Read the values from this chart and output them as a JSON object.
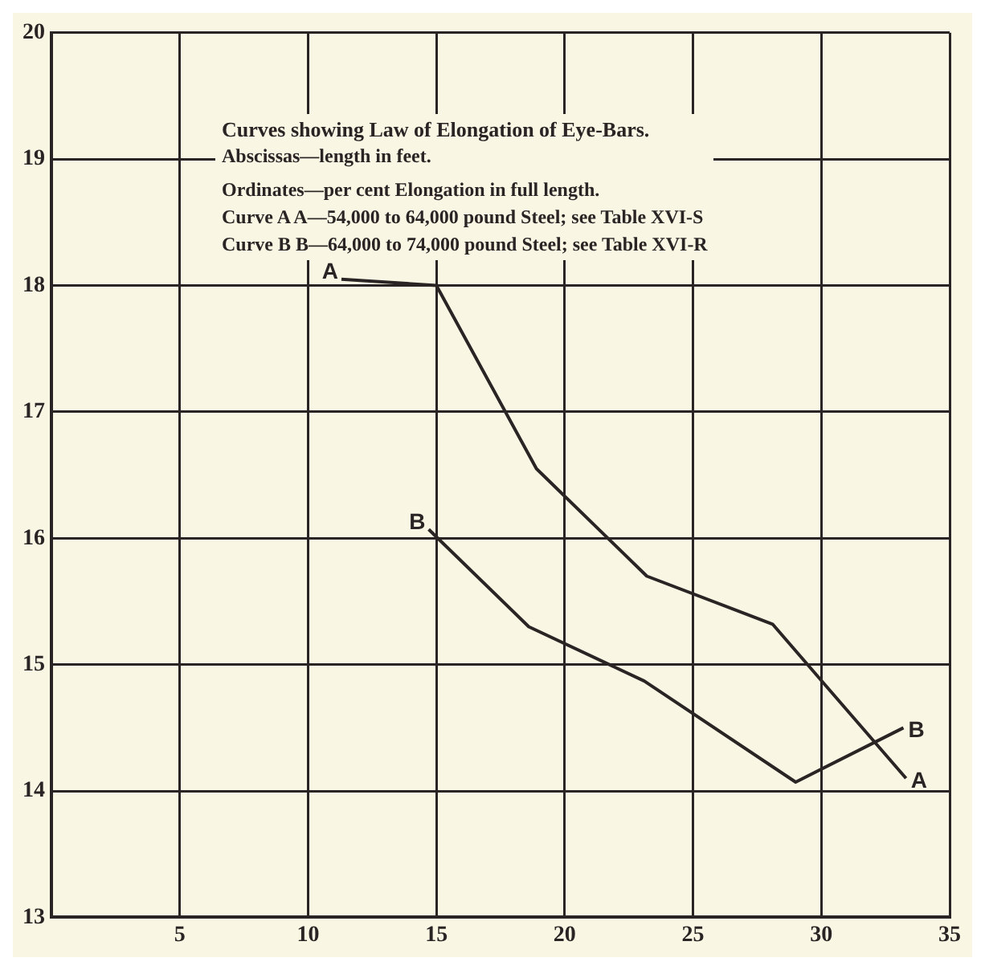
{
  "chart_data": {
    "type": "line",
    "title": "Curves showing Law of Elongation of Eye-Bars.",
    "annotations": [
      "Abscissas—length in feet.",
      "Ordinates—per cent Elongation in full length.",
      "Curve A A—54,000 to 64,000 pound Steel; see Table XVI-S",
      "Curve B B—64,000 to 74,000 pound Steel; see Table XVI-R"
    ],
    "series": [
      {
        "name": "A",
        "color": "#2b2424",
        "x": [
          11.3,
          15,
          18.9,
          23.2,
          28.1,
          33.3
        ],
        "values": [
          18.05,
          18.0,
          16.55,
          15.7,
          15.32,
          14.1
        ]
      },
      {
        "name": "B",
        "color": "#2b2424",
        "x": [
          14.7,
          18.6,
          23.1,
          29,
          33.2
        ],
        "values": [
          16.07,
          15.3,
          14.87,
          14.07,
          14.5
        ]
      }
    ],
    "xlim": [
      0,
      35
    ],
    "xticks": [
      5,
      10,
      15,
      20,
      25,
      30,
      35
    ],
    "ylim": [
      13,
      20
    ],
    "yticks": [
      13,
      14,
      15,
      16,
      17,
      18,
      19,
      20
    ],
    "grid": true,
    "legend": false,
    "marker": "none",
    "line_style": "solid"
  }
}
